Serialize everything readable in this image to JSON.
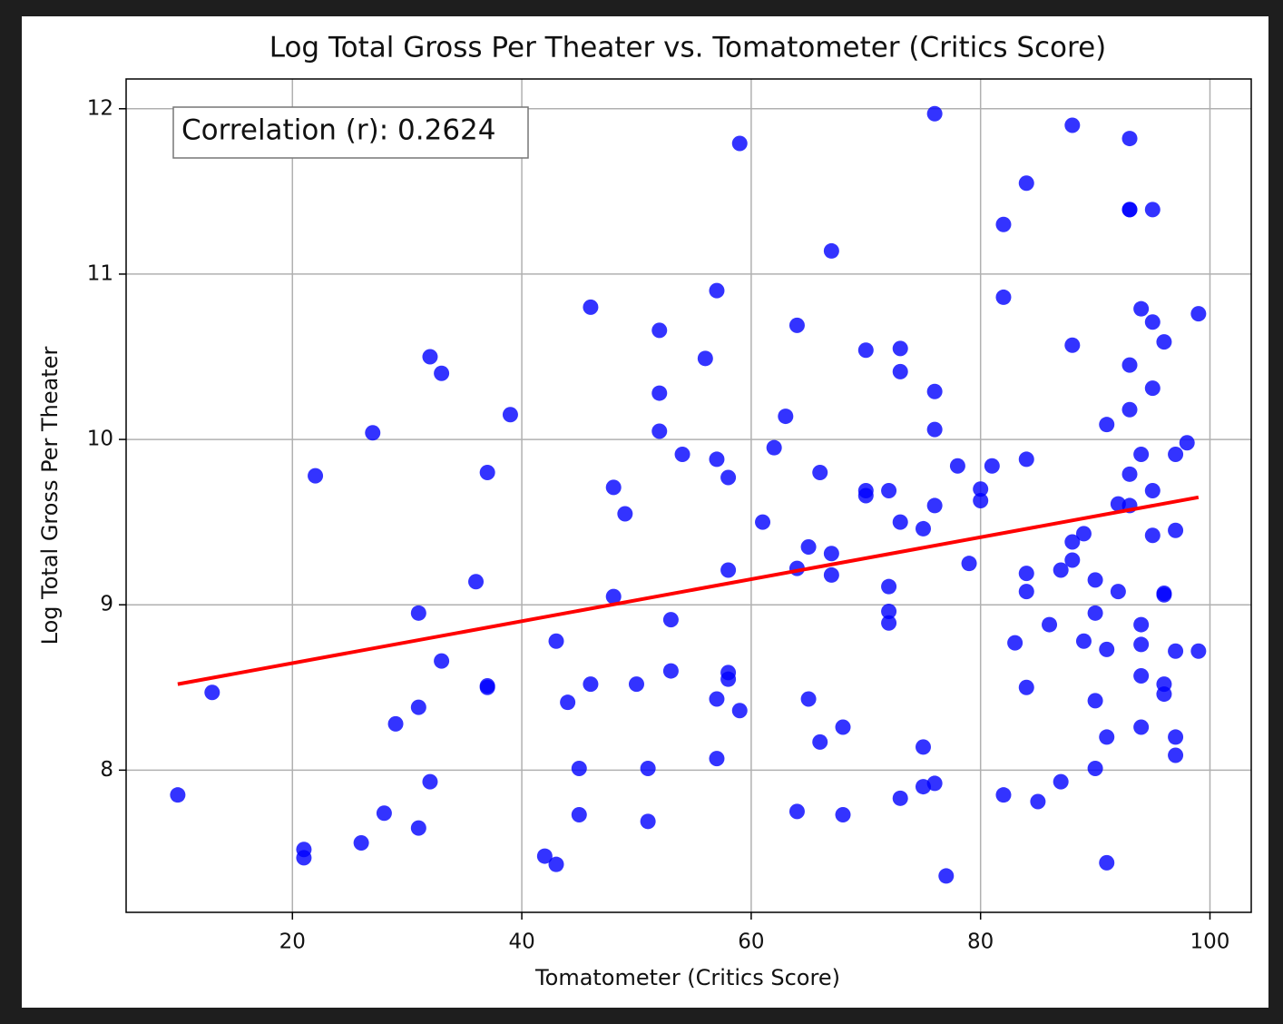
{
  "chart_data": {
    "type": "scatter",
    "title": "Log Total Gross Per Theater vs. Tomatometer (Critics Score)",
    "x_label": "Tomatometer (Critics Score)",
    "y_label": "Log Total Gross Per Theater",
    "annotation": "Correlation (r): 0.2624",
    "color": "#0000ff",
    "grid": true,
    "xlim": [
      5.5,
      103.6
    ],
    "ylim": [
      7.14,
      12.18
    ],
    "xticks": [
      20,
      40,
      60,
      80,
      100
    ],
    "yticks": [
      8,
      9,
      10,
      11,
      12
    ],
    "x": [
      10,
      13,
      21,
      21,
      22,
      26,
      27,
      28,
      29,
      31,
      31,
      31,
      32,
      32,
      33,
      33,
      36,
      37,
      37,
      37,
      39,
      42,
      43,
      43,
      44,
      45,
      45,
      46,
      46,
      48,
      48,
      49,
      50,
      51,
      51,
      52,
      52,
      52,
      53,
      53,
      54,
      56,
      57,
      57,
      57,
      57,
      58,
      58,
      58,
      58,
      59,
      59,
      61,
      62,
      63,
      64,
      64,
      64,
      65,
      65,
      66,
      66,
      67,
      67,
      67,
      68,
      68,
      70,
      70,
      70,
      72,
      72,
      72,
      72,
      73,
      73,
      73,
      73,
      75,
      75,
      75,
      76,
      76,
      76,
      76,
      76,
      77,
      78,
      79,
      80,
      80,
      81,
      82,
      82,
      82,
      83,
      84,
      84,
      84,
      84,
      84,
      85,
      86,
      87,
      87,
      88,
      88,
      88,
      88,
      89,
      89,
      90,
      90,
      90,
      90,
      91,
      91,
      91,
      91,
      92,
      92,
      93,
      93,
      93,
      93,
      93,
      93,
      93,
      94,
      94,
      94,
      94,
      94,
      94,
      95,
      95,
      95,
      95,
      95,
      96,
      96,
      96,
      96,
      96,
      97,
      97,
      97,
      97,
      97,
      98,
      99,
      99
    ],
    "values": [
      7.85,
      8.47,
      7.52,
      7.47,
      9.78,
      7.56,
      10.04,
      7.74,
      8.28,
      8.95,
      8.38,
      7.65,
      10.5,
      7.93,
      10.4,
      8.66,
      9.14,
      9.8,
      8.51,
      8.5,
      10.15,
      7.48,
      8.78,
      7.43,
      8.41,
      8.01,
      7.73,
      10.8,
      8.52,
      9.71,
      9.05,
      9.55,
      8.52,
      8.01,
      7.69,
      10.66,
      10.28,
      10.05,
      8.91,
      8.6,
      9.91,
      10.49,
      10.9,
      9.88,
      8.43,
      8.07,
      9.77,
      9.21,
      8.59,
      8.55,
      11.79,
      8.36,
      9.5,
      9.95,
      10.14,
      10.69,
      9.22,
      7.75,
      9.35,
      8.43,
      9.8,
      8.17,
      11.14,
      9.31,
      9.18,
      8.26,
      7.73,
      10.54,
      9.69,
      9.66,
      9.69,
      9.11,
      8.96,
      8.89,
      10.55,
      10.41,
      9.5,
      7.83,
      9.46,
      8.14,
      7.9,
      11.97,
      10.29,
      10.06,
      9.6,
      7.92,
      7.36,
      9.84,
      9.25,
      9.7,
      9.63,
      9.84,
      11.3,
      10.86,
      7.85,
      8.77,
      11.55,
      9.88,
      9.19,
      9.08,
      8.5,
      7.81,
      8.88,
      9.21,
      7.93,
      11.9,
      10.57,
      9.38,
      9.27,
      9.43,
      8.78,
      9.15,
      8.95,
      8.42,
      8.01,
      10.09,
      8.73,
      8.2,
      7.44,
      9.61,
      9.08,
      11.82,
      11.39,
      11.39,
      10.45,
      10.18,
      9.79,
      9.6,
      10.79,
      9.91,
      8.88,
      8.76,
      8.57,
      8.26,
      11.39,
      10.71,
      10.31,
      9.69,
      9.42,
      10.59,
      9.07,
      9.06,
      8.52,
      8.46,
      9.91,
      9.45,
      8.72,
      8.2,
      8.09,
      9.98,
      10.76,
      8.72
    ],
    "trend_line": {
      "color": "#ff0000",
      "x": [
        10,
        99
      ],
      "values": [
        8.52,
        9.65
      ]
    }
  }
}
